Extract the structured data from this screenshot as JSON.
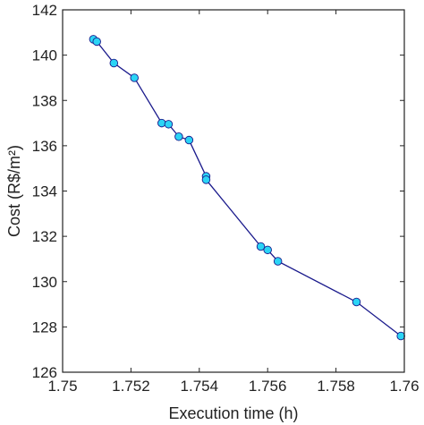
{
  "chart_data": {
    "type": "line",
    "title": "",
    "xlabel": "Execution time (h)",
    "ylabel": "Cost (R$/m²)",
    "xlim": [
      1.75,
      1.76
    ],
    "ylim": [
      126,
      142
    ],
    "xticks": [
      1.75,
      1.752,
      1.754,
      1.756,
      1.758,
      1.76
    ],
    "xtick_labels": [
      "1.75",
      "1.752",
      "1.754",
      "1.756",
      "1.758",
      "1.76"
    ],
    "yticks": [
      126,
      128,
      130,
      132,
      134,
      136,
      138,
      140,
      142
    ],
    "ytick_labels": [
      "126",
      "128",
      "130",
      "132",
      "134",
      "136",
      "138",
      "140",
      "142"
    ],
    "grid": false,
    "colors": {
      "line": "#1a1a8c",
      "marker_fill": "#2bd4f5",
      "marker_edge": "#1a1a8c",
      "axis": "#222222"
    },
    "series": [
      {
        "marker": "circle",
        "x": [
          1.7509,
          1.751,
          1.7515,
          1.7521,
          1.7529,
          1.7531,
          1.7534,
          1.7537,
          1.7542,
          1.7542,
          1.7558,
          1.756,
          1.7563,
          1.7586,
          1.7599
        ],
        "y": [
          140.7,
          140.6,
          139.65,
          139.0,
          137.0,
          136.95,
          136.4,
          136.25,
          134.65,
          134.5,
          131.55,
          131.4,
          130.9,
          129.1,
          127.6
        ]
      }
    ]
  }
}
